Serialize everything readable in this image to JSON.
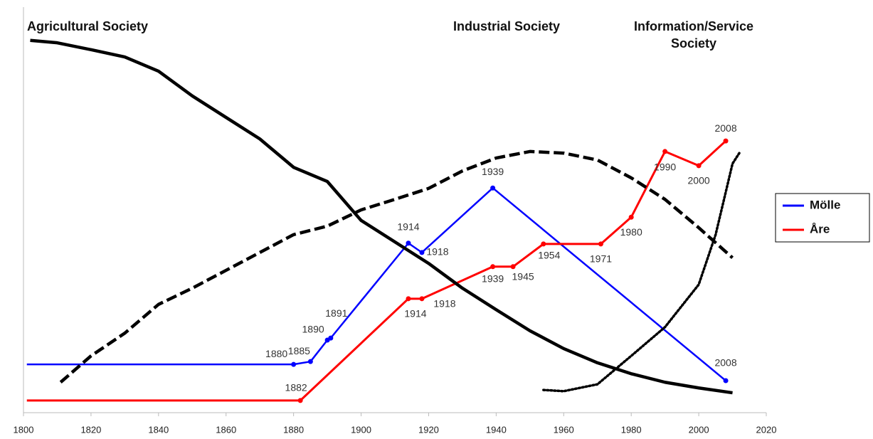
{
  "chart_data": {
    "type": "line",
    "annotations": [
      {
        "lines": [
          "Agricultural Society"
        ]
      },
      {
        "lines": [
          "Industrial Society"
        ]
      },
      {
        "lines": [
          "Information/Service",
          "Society"
        ]
      }
    ],
    "xlim": [
      1800,
      2020
    ],
    "xticks": [
      1800,
      1820,
      1840,
      1860,
      1880,
      1900,
      1920,
      1940,
      1960,
      1980,
      2000,
      2020
    ],
    "ylim": [
      0,
      100
    ],
    "series": [
      {
        "name": "Mölle",
        "color": "#0000ff",
        "line_start": 1801,
        "markers": true,
        "x": [
          1880,
          1885,
          1890,
          1891,
          1914,
          1918,
          1939,
          2008
        ],
        "values": [
          11.9,
          12.6,
          17.9,
          18.4,
          41.8,
          39.5,
          55.4,
          7.9
        ]
      },
      {
        "name": "Åre",
        "color": "#ff0000",
        "line_start": 1801,
        "markers": true,
        "x": [
          1882,
          1914,
          1918,
          1939,
          1945,
          1954,
          1971,
          1980,
          1990,
          2000,
          2008
        ],
        "values": [
          3.0,
          28.1,
          28.1,
          36.0,
          36.0,
          41.6,
          41.6,
          48.2,
          64.4,
          60.9,
          67.0
        ]
      },
      {
        "color": "#000000",
        "style": "solid",
        "x": [
          1802,
          1810,
          1820,
          1830,
          1840,
          1850,
          1860,
          1870,
          1880,
          1890,
          1900,
          1910,
          1920,
          1930,
          1940,
          1950,
          1960,
          1970,
          1980,
          1990,
          2000,
          2010
        ],
        "values": [
          91.8,
          91.2,
          89.5,
          87.7,
          84.2,
          78.1,
          72.8,
          67.5,
          60.5,
          57.0,
          47.4,
          42.1,
          36.8,
          30.7,
          25.4,
          20.2,
          15.8,
          12.3,
          9.6,
          7.5,
          6.1,
          4.9
        ]
      },
      {
        "color": "#000000",
        "style": "dashed",
        "x": [
          1811,
          1820,
          1830,
          1840,
          1850,
          1860,
          1870,
          1880,
          1890,
          1900,
          1910,
          1920,
          1930,
          1940,
          1950,
          1960,
          1970,
          1980,
          1990,
          2000,
          2010
        ],
        "values": [
          7.5,
          14.0,
          19.6,
          26.7,
          30.7,
          35.1,
          39.5,
          43.9,
          46.0,
          50.0,
          52.6,
          55.3,
          59.6,
          62.8,
          64.4,
          64.0,
          62.3,
          57.9,
          52.6,
          45.6,
          38.2
        ]
      },
      {
        "color": "#000000",
        "style": "dotted",
        "x": [
          1954,
          1960,
          1970,
          1980,
          1990,
          2000,
          2005,
          2010,
          2012
        ],
        "values": [
          5.6,
          5.3,
          7.0,
          14.0,
          21.1,
          31.6,
          43.9,
          61.4,
          64.0
        ]
      }
    ]
  }
}
